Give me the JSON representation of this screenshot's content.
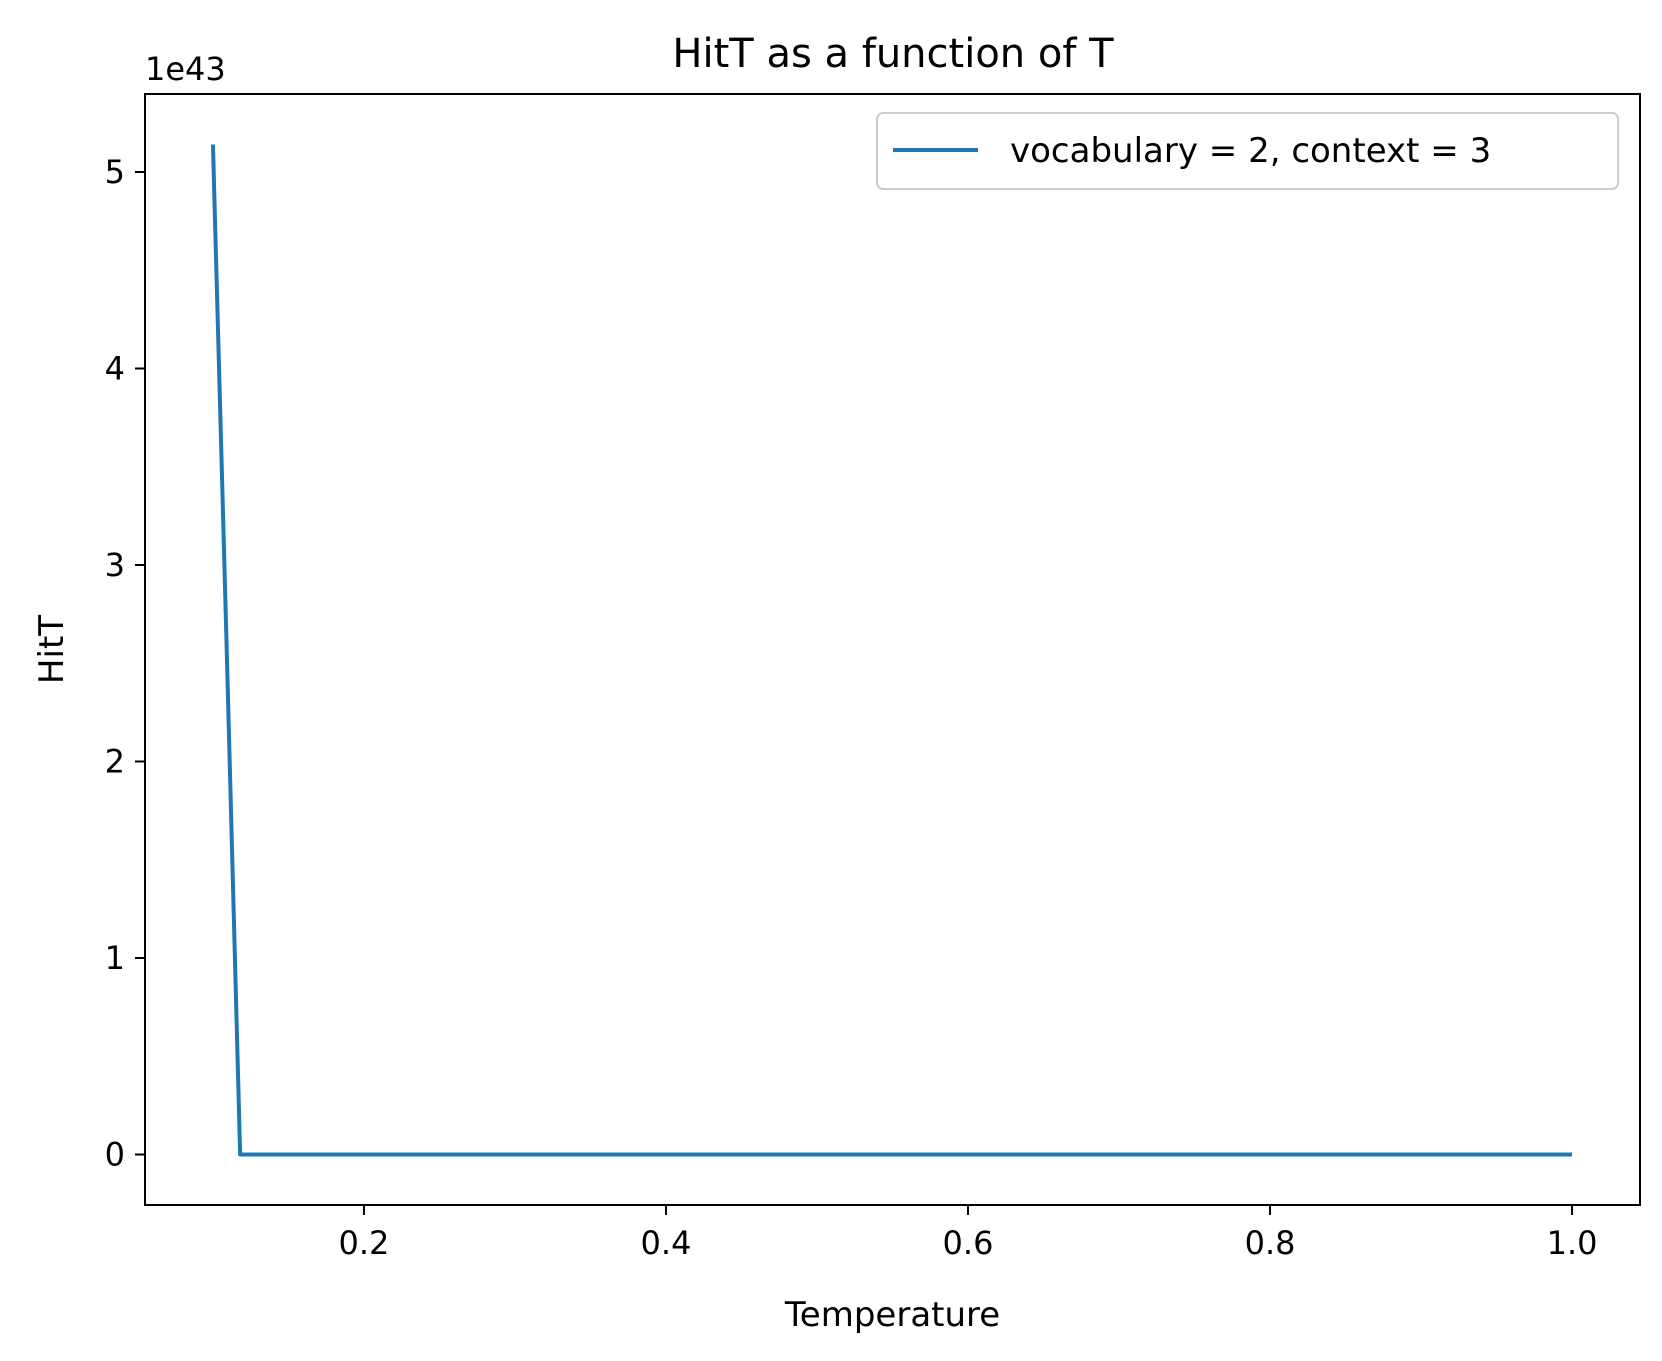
{
  "chart_data": {
    "type": "line",
    "title": "HitT as a function of T",
    "xlabel": "Temperature",
    "ylabel": "HitT",
    "y_offset_label": "1e43",
    "y_scale_factor": 1e+43,
    "xlim": [
      0.055,
      1.045
    ],
    "ylim": [
      -0.257,
      5.397
    ],
    "x_ticks": [
      0.2,
      0.4,
      0.6,
      0.8,
      1.0
    ],
    "x_tick_labels": [
      "0.2",
      "0.4",
      "0.6",
      "0.8",
      "1.0"
    ],
    "y_ticks": [
      0,
      1,
      2,
      3,
      4,
      5
    ],
    "y_tick_labels": [
      "0",
      "1",
      "2",
      "3",
      "4",
      "5"
    ],
    "grid": false,
    "legend_position": "upper right",
    "series": [
      {
        "name": "vocabulary = 2, context = 3",
        "color": "#1f77b4",
        "x": [
          0.1,
          0.109,
          0.118,
          0.2,
          0.4,
          0.6,
          0.8,
          1.0
        ],
        "y": [
          5.14,
          2.6,
          0.0,
          0.0,
          0.0,
          0.0,
          0.0,
          0.0
        ]
      }
    ]
  }
}
